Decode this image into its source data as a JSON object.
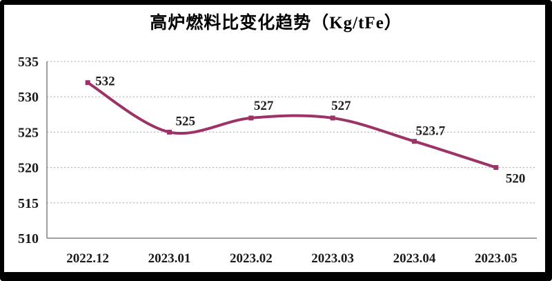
{
  "chart_data": {
    "type": "line",
    "title": "高炉燃料比变化趋势（Kg/tFe）",
    "categories": [
      "2022.12",
      "2023.01",
      "2023.02",
      "2023.03",
      "2023.04",
      "2023.05"
    ],
    "values": [
      532,
      525,
      527,
      527,
      523.7,
      520
    ],
    "point_labels": [
      "532",
      "525",
      "527",
      "527",
      "523.7",
      "520"
    ],
    "xlabel": "",
    "ylabel": "",
    "ylim": [
      510,
      535
    ],
    "yticks": [
      510,
      515,
      520,
      525,
      530,
      535
    ],
    "grid": "horizontal-dashed",
    "legend": "none",
    "line_style": "smooth",
    "marker": "square"
  },
  "colors": {
    "series": "#9c3265",
    "grid": "#a6a6a6",
    "axis": "#808080",
    "text": "#1b1b1b",
    "frame": "#000000",
    "background": "#ffffff"
  }
}
